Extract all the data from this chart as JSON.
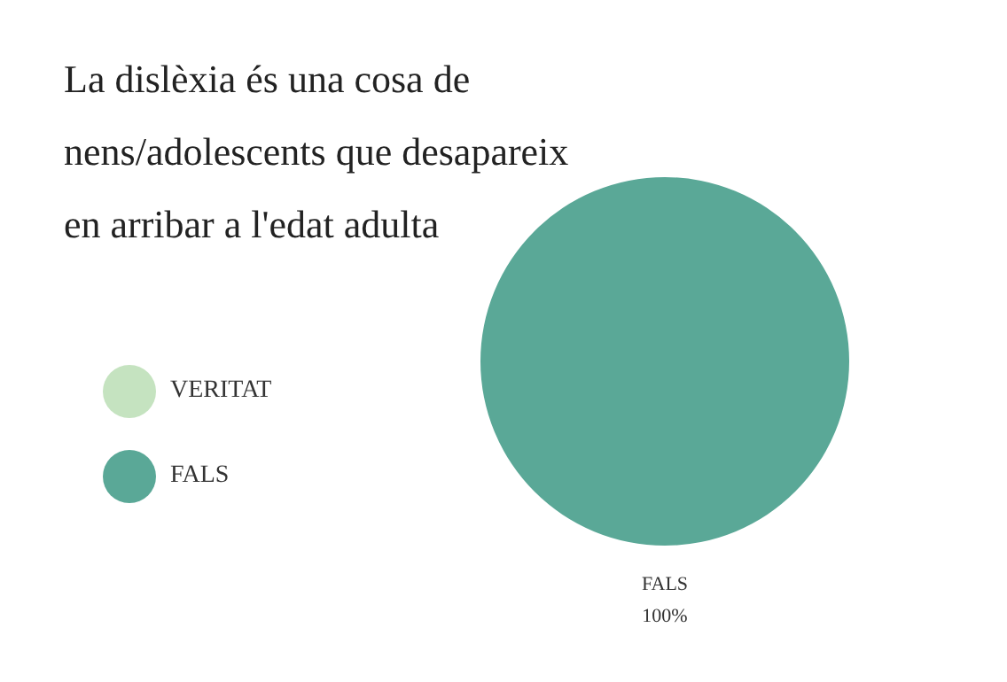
{
  "chart_data": {
    "type": "pie",
    "title": "La dislèxia és una cosa de nens/adolescents que desapareix en arribar a l'edat adulta",
    "categories": [
      "VERITAT",
      "FALS"
    ],
    "values": [
      0,
      100
    ],
    "colors": [
      "#c5e3c0",
      "#5aa897"
    ],
    "value_labels": [
      null,
      "100%"
    ],
    "legend": "left"
  }
}
